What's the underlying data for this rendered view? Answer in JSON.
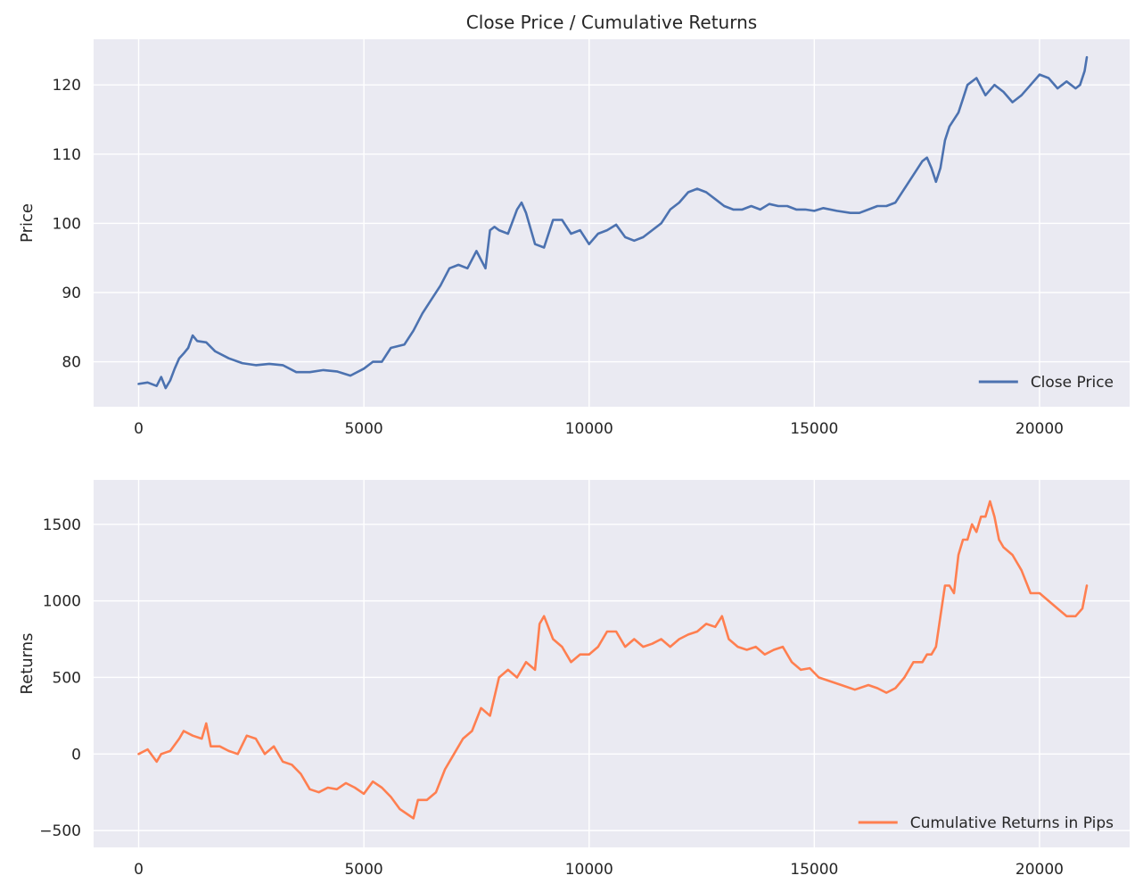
{
  "chart_data": [
    {
      "type": "line",
      "title": "Close Price / Cumulative Returns",
      "xlabel": "",
      "ylabel": "Price",
      "xlim": [
        -1000,
        22000
      ],
      "ylim": [
        73.5,
        126.6
      ],
      "xticks": [
        0,
        5000,
        10000,
        15000,
        20000
      ],
      "xtick_labels": [
        "0",
        "5000",
        "10000",
        "15000",
        "20000"
      ],
      "yticks": [
        80,
        90,
        100,
        110,
        120
      ],
      "ytick_labels": [
        "80",
        "90",
        "100",
        "110",
        "120"
      ],
      "grid": true,
      "legend_position": "lower-right",
      "series": [
        {
          "name": "Close Price",
          "color": "#4c72b0",
          "x": [
            0,
            200,
            400,
            500,
            600,
            700,
            800,
            900,
            1000,
            1100,
            1200,
            1300,
            1500,
            1700,
            2000,
            2300,
            2600,
            2900,
            3200,
            3500,
            3800,
            4100,
            4400,
            4700,
            5000,
            5200,
            5400,
            5600,
            5900,
            6100,
            6300,
            6500,
            6700,
            6900,
            7100,
            7300,
            7500,
            7700,
            7800,
            7900,
            8000,
            8200,
            8400,
            8500,
            8600,
            8800,
            9000,
            9200,
            9400,
            9600,
            9800,
            10000,
            10200,
            10400,
            10600,
            10800,
            11000,
            11200,
            11400,
            11600,
            11800,
            12000,
            12200,
            12400,
            12600,
            12800,
            13000,
            13200,
            13400,
            13600,
            13800,
            14000,
            14200,
            14400,
            14600,
            14800,
            15000,
            15200,
            15500,
            15800,
            16000,
            16200,
            16400,
            16600,
            16800,
            17000,
            17200,
            17400,
            17500,
            17600,
            17700,
            17800,
            17900,
            18000,
            18200,
            18300,
            18400,
            18600,
            18800,
            19000,
            19200,
            19400,
            19600,
            19800,
            20000,
            20200,
            20400,
            20600,
            20800,
            20900,
            21000,
            21050
          ],
          "y": [
            76.8,
            77.0,
            76.5,
            77.8,
            76.2,
            77.3,
            79.0,
            80.5,
            81.2,
            82.0,
            83.8,
            83.0,
            82.8,
            81.5,
            80.5,
            79.8,
            79.5,
            79.7,
            79.5,
            78.5,
            78.5,
            78.8,
            78.6,
            78.0,
            79.0,
            80.0,
            80.0,
            82.0,
            82.5,
            84.5,
            87.0,
            89.0,
            91.0,
            93.5,
            94.0,
            93.5,
            96.0,
            93.5,
            99.0,
            99.5,
            99.0,
            98.5,
            102.0,
            103.0,
            101.5,
            97.0,
            96.5,
            100.5,
            100.5,
            98.5,
            99.0,
            97.0,
            98.5,
            99.0,
            99.8,
            98.0,
            97.5,
            98.0,
            99.0,
            100.0,
            102.0,
            103.0,
            104.5,
            105.0,
            104.5,
            103.5,
            102.5,
            102.0,
            102.0,
            102.5,
            102.0,
            102.8,
            102.5,
            102.5,
            102.0,
            102.0,
            101.8,
            102.2,
            101.8,
            101.5,
            101.5,
            102.0,
            102.5,
            102.5,
            103.0,
            105.0,
            107.0,
            109.0,
            109.5,
            108.0,
            106.0,
            108.0,
            112.0,
            114.0,
            116.0,
            118.0,
            120.0,
            121.0,
            118.5,
            120.0,
            119.0,
            117.5,
            118.5,
            120.0,
            121.5,
            121.0,
            119.5,
            120.5,
            119.5,
            120.0,
            122.0,
            124.0
          ]
        }
      ]
    },
    {
      "type": "line",
      "title": "",
      "xlabel": "",
      "ylabel": "Returns",
      "xlim": [
        -1000,
        22000
      ],
      "ylim": [
        -610,
        1790
      ],
      "xticks": [
        0,
        5000,
        10000,
        15000,
        20000
      ],
      "xtick_labels": [
        "0",
        "5000",
        "10000",
        "15000",
        "20000"
      ],
      "yticks": [
        -500,
        0,
        500,
        1000,
        1500
      ],
      "ytick_labels": [
        "−500",
        "0",
        "500",
        "1000",
        "1500"
      ],
      "grid": true,
      "legend_position": "lower-right",
      "series": [
        {
          "name": "Cumulative Returns in Pips",
          "color": "#ff7f50",
          "x": [
            0,
            200,
            400,
            500,
            700,
            900,
            1000,
            1200,
            1400,
            1500,
            1600,
            1800,
            2000,
            2200,
            2400,
            2600,
            2800,
            3000,
            3200,
            3400,
            3600,
            3800,
            4000,
            4200,
            4400,
            4600,
            4800,
            5000,
            5200,
            5400,
            5600,
            5800,
            6000,
            6100,
            6200,
            6400,
            6600,
            6800,
            7000,
            7200,
            7400,
            7600,
            7800,
            8000,
            8200,
            8400,
            8600,
            8800,
            8900,
            9000,
            9200,
            9400,
            9600,
            9800,
            10000,
            10200,
            10400,
            10600,
            10800,
            11000,
            11200,
            11400,
            11600,
            11800,
            12000,
            12200,
            12400,
            12600,
            12800,
            12950,
            13100,
            13300,
            13500,
            13700,
            13900,
            14100,
            14300,
            14500,
            14700,
            14900,
            15100,
            15300,
            15600,
            15900,
            16200,
            16400,
            16600,
            16800,
            17000,
            17200,
            17400,
            17500,
            17600,
            17700,
            17800,
            17900,
            18000,
            18100,
            18200,
            18300,
            18400,
            18500,
            18600,
            18700,
            18800,
            18900,
            19000,
            19100,
            19200,
            19400,
            19600,
            19800,
            20000,
            20200,
            20400,
            20600,
            20800,
            20950,
            21050
          ],
          "y": [
            0,
            30,
            -50,
            0,
            20,
            100,
            150,
            120,
            100,
            200,
            50,
            50,
            20,
            0,
            120,
            100,
            0,
            50,
            -50,
            -70,
            -130,
            -230,
            -250,
            -220,
            -230,
            -190,
            -220,
            -260,
            -180,
            -220,
            -280,
            -360,
            -400,
            -420,
            -300,
            -300,
            -250,
            -100,
            0,
            100,
            150,
            300,
            250,
            500,
            550,
            500,
            600,
            550,
            850,
            900,
            750,
            700,
            600,
            650,
            650,
            700,
            800,
            800,
            700,
            750,
            700,
            720,
            750,
            700,
            750,
            780,
            800,
            850,
            830,
            900,
            750,
            700,
            680,
            700,
            650,
            680,
            700,
            600,
            550,
            560,
            500,
            480,
            450,
            420,
            450,
            430,
            400,
            430,
            500,
            600,
            600,
            650,
            650,
            700,
            900,
            1100,
            1100,
            1050,
            1300,
            1400,
            1400,
            1500,
            1450,
            1550,
            1550,
            1650,
            1550,
            1400,
            1350,
            1300,
            1200,
            1050,
            1050,
            1000,
            950,
            900,
            900,
            950,
            1100
          ]
        }
      ]
    }
  ]
}
